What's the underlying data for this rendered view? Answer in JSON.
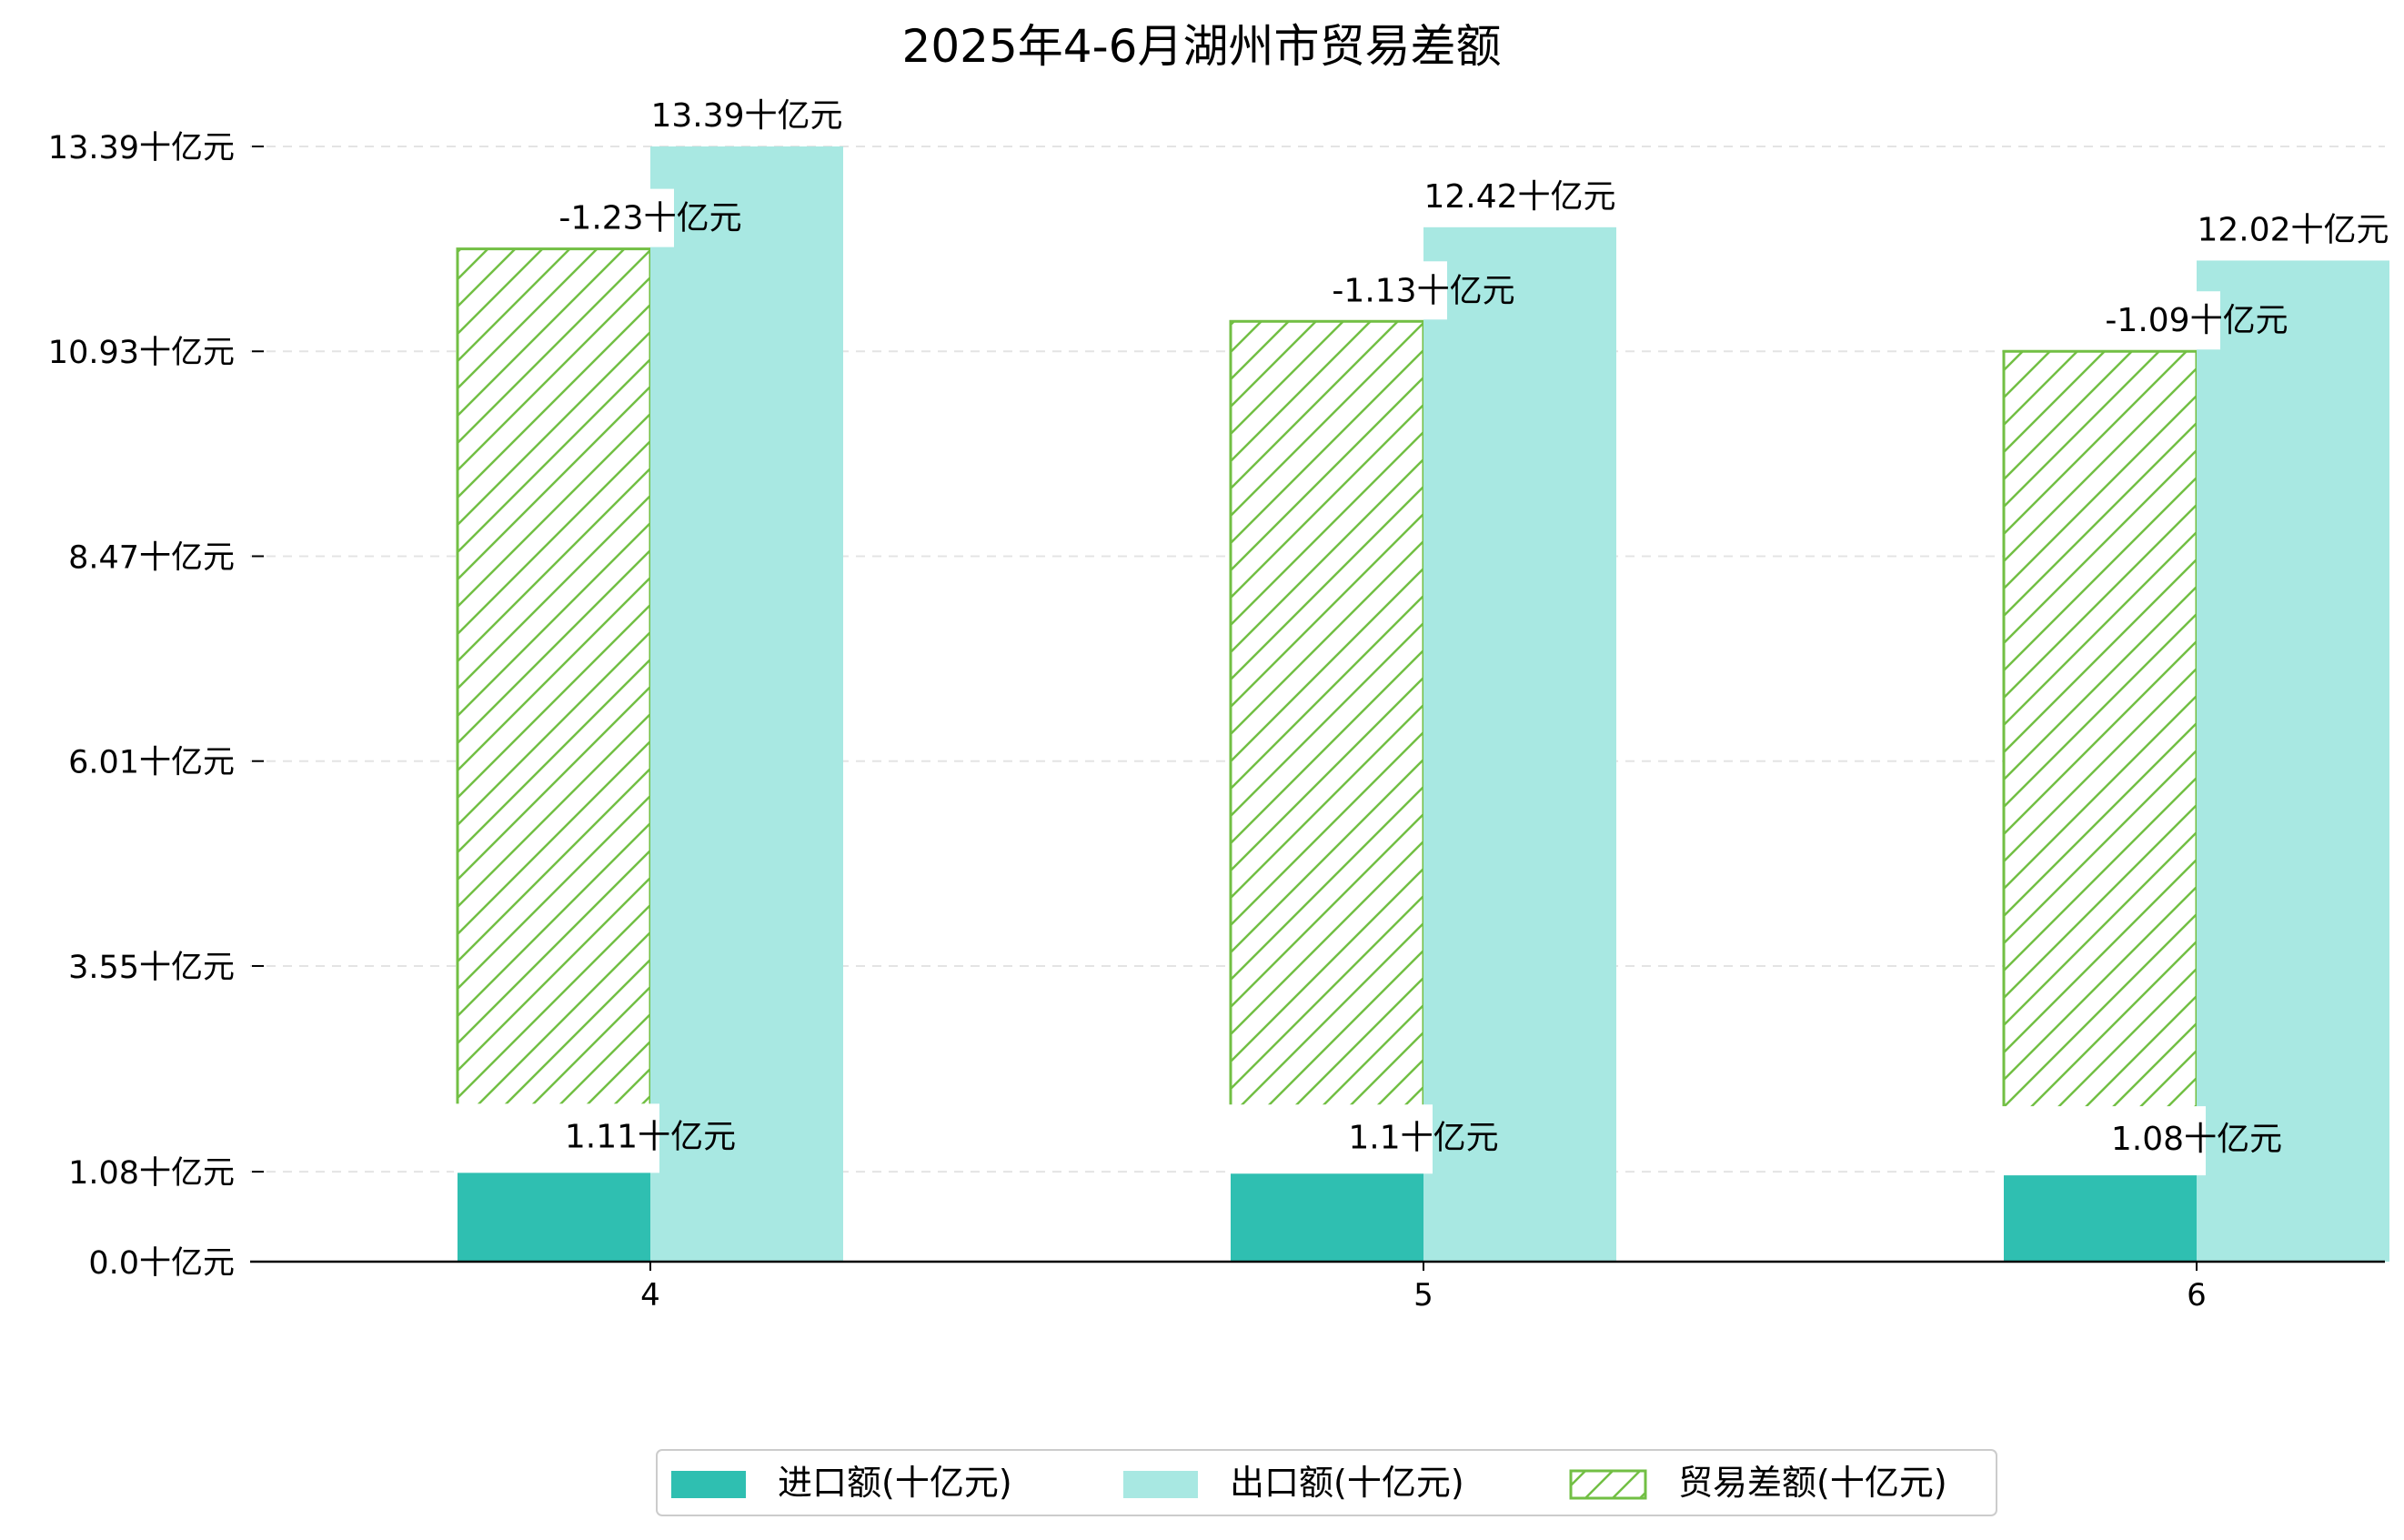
{
  "chart_data": {
    "type": "bar",
    "title": "2025年4-6月湖州市贸易差额",
    "xlabel": "",
    "ylabel": "",
    "categories": [
      "4",
      "5",
      "6"
    ],
    "ylim": [
      0,
      13.39
    ],
    "y_ticks": [
      {
        "value": 0.0,
        "label": "0.0十亿元"
      },
      {
        "value": 1.08,
        "label": "1.08十亿元"
      },
      {
        "value": 3.55,
        "label": "3.55十亿元"
      },
      {
        "value": 6.01,
        "label": "6.01十亿元"
      },
      {
        "value": 8.47,
        "label": "8.47十亿元"
      },
      {
        "value": 10.93,
        "label": "10.93十亿元"
      },
      {
        "value": 13.39,
        "label": "13.39十亿元"
      }
    ],
    "grid": true,
    "legend_position": "bottom-center",
    "series": [
      {
        "name": "进口额(十亿元)",
        "color": "#2fbfb1",
        "values": [
          1.11,
          1.1,
          1.08
        ],
        "labels": [
          "1.11十亿元",
          "1.1十亿元",
          "1.08十亿元"
        ]
      },
      {
        "name": "出口额(十亿元)",
        "color": "#a8e8e2",
        "values": [
          13.39,
          12.42,
          12.02
        ],
        "labels": [
          "13.39十亿元",
          "12.42十亿元",
          "12.02十亿元"
        ]
      },
      {
        "name": "贸易差额(十亿元)",
        "color": "#72bf44",
        "style": "hatched",
        "values": [
          -1.23,
          -1.13,
          -1.09
        ],
        "labels": [
          "-1.23十亿元",
          "-1.13十亿元",
          "-1.09十亿元"
        ]
      }
    ]
  }
}
